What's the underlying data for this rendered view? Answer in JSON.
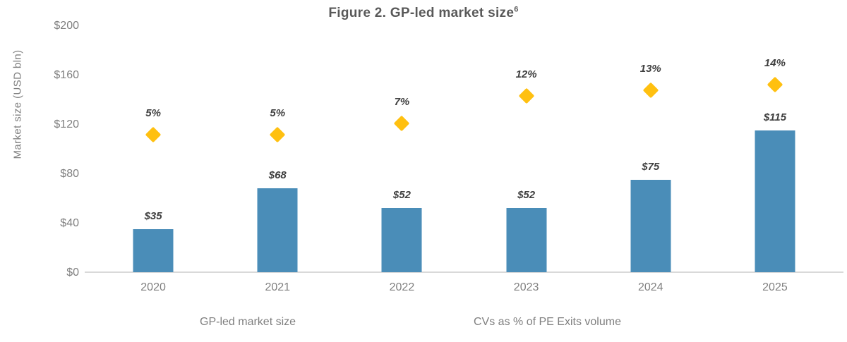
{
  "title": {
    "text": "Figure 2. GP-led market size",
    "superscript": "6"
  },
  "y_axis": {
    "label": "Market size (USD bln)"
  },
  "legend": {
    "items": [
      {
        "label": "GP-led market size",
        "marker": "square",
        "color": "#4a8db8"
      },
      {
        "label": "CVs as % of PE Exits volume",
        "marker": "diamond",
        "color": "#ffc010"
      }
    ]
  },
  "colors": {
    "bar": "#4a8db8",
    "marker": "#ffc010",
    "title_text": "#595959",
    "axis_text": "#7f7f7f",
    "data_label_text": "#3f3f3f",
    "axis_line": "#d9d9d9"
  },
  "chart_data": {
    "type": "bar",
    "title": "Figure 2. GP-led market size⁶",
    "categories": [
      "2020",
      "2021",
      "2022",
      "2023",
      "2024",
      "2025"
    ],
    "series": [
      {
        "name": "GP-led market size",
        "type": "bar",
        "values": [
          35,
          68,
          52,
          52,
          75,
          115
        ],
        "data_labels": [
          "$35",
          "$68",
          "$52",
          "$52",
          "$75",
          "$115"
        ],
        "color": "#4a8db8"
      },
      {
        "name": "CVs as % of PE Exits volume",
        "type": "scatter",
        "marker": "diamond",
        "unit": "%",
        "values": [
          5,
          5,
          7,
          12,
          13,
          14
        ],
        "data_labels": [
          "5%",
          "5%",
          "7%",
          "12%",
          "13%",
          "14%"
        ],
        "color": "#ffc010"
      }
    ],
    "ylabel": "Market size (USD bln)",
    "ylim": [
      0,
      200
    ],
    "y_tick_values": [
      0,
      40,
      80,
      120,
      160,
      200
    ],
    "y_tick_labels": [
      "$0",
      "$40",
      "$80",
      "$120",
      "$160",
      "$200"
    ],
    "grid": false,
    "legend_position": "bottom",
    "scatter_display_mapping": {
      "note": "diamond height on primary axis = offset + scale * percent",
      "offset": 90,
      "scale": 4.45
    }
  }
}
